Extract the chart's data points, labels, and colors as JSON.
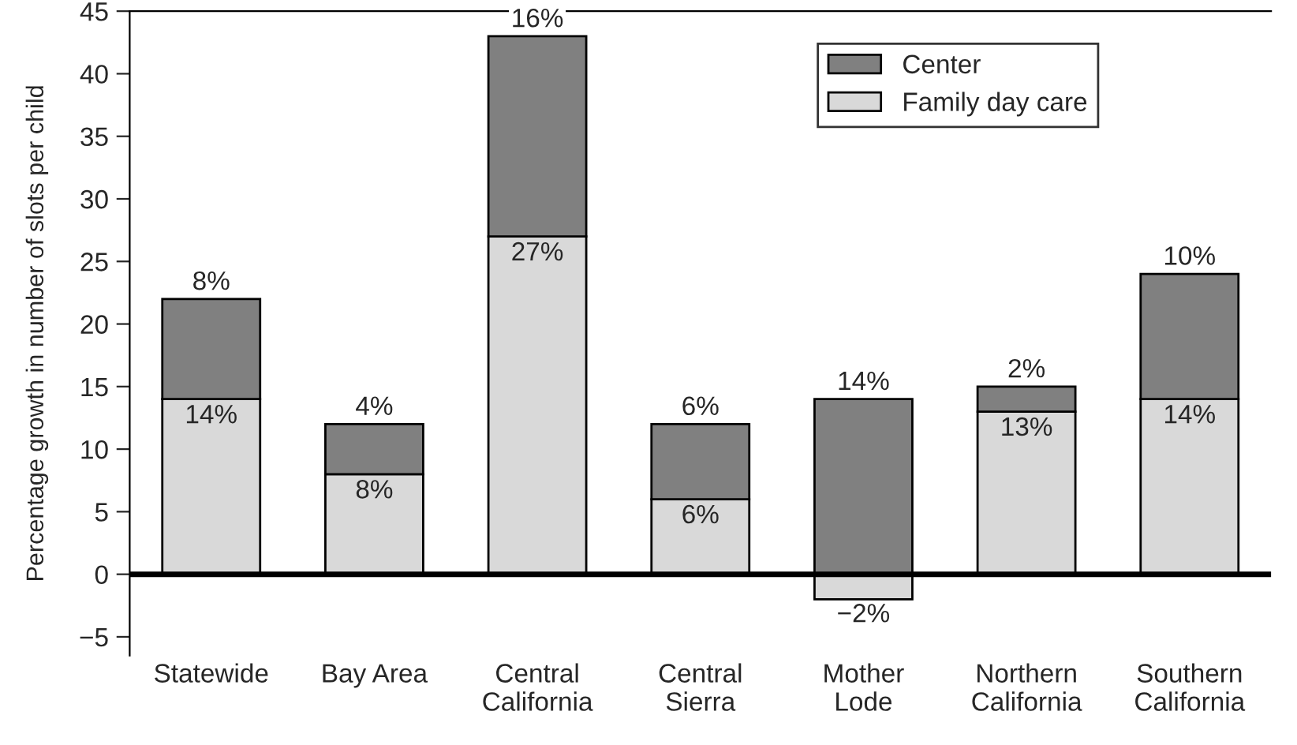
{
  "chart_data": {
    "type": "bar",
    "stacked": true,
    "ylabel": "Percentage growth in number of slots per child",
    "categories": [
      "Statewide",
      "Bay Area",
      "Central\nCalifornia",
      "Central\nSierra",
      "Mother\nLode",
      "Northern\nCalifornia",
      "Southern\nCalifornia"
    ],
    "series": [
      {
        "name": "Family day care",
        "color": "#d9d9d9",
        "values": [
          14,
          8,
          27,
          6,
          -2,
          13,
          14
        ],
        "value_labels": [
          "14%",
          "8%",
          "27%",
          "6%",
          "−2%",
          "13%",
          "14%"
        ]
      },
      {
        "name": "Center",
        "color": "#808080",
        "values": [
          8,
          4,
          16,
          6,
          14,
          2,
          10
        ],
        "value_labels": [
          "8%",
          "4%",
          "16%",
          "6%",
          "14%",
          "2%",
          "10%"
        ]
      }
    ],
    "ylim": [
      -6.5,
      45
    ],
    "yticks": [
      {
        "value": -5,
        "label": "−5"
      },
      0,
      5,
      10,
      15,
      20,
      25,
      30,
      35,
      40,
      45
    ],
    "ref_lines": [
      {
        "axis": "y",
        "value": 0,
        "color": "#000000"
      }
    ],
    "legend": "top right",
    "grid": false
  }
}
